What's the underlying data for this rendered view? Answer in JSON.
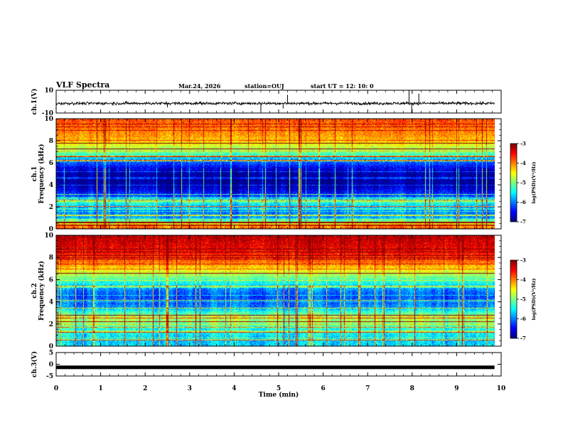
{
  "header": {
    "title": "VLF Spectra",
    "date": "Mar.24, 2026",
    "station": "station=OUJ",
    "start": "start  UT =   12: 10: 0"
  },
  "chart_data": [
    {
      "type": "line",
      "name": "ch1-waveform",
      "ylabel": "ch.1(V)",
      "ylim": [
        -10,
        10
      ],
      "yticks": [
        "10",
        "-10"
      ],
      "xlim": [
        0,
        10
      ],
      "baseline": -1.5,
      "spikes": [
        {
          "x": 4.6,
          "y": -9
        },
        {
          "x": 5.1,
          "y": -6
        },
        {
          "x": 5.2,
          "y": 6
        },
        {
          "x": 7.93,
          "y": 10
        },
        {
          "x": 7.99,
          "y": -10
        },
        {
          "x": 8.15,
          "y": 7
        },
        {
          "x": 2.5,
          "y": -5
        }
      ]
    },
    {
      "type": "heatmap",
      "name": "ch1-spectrogram",
      "ylabel": "Frequency (kHz)",
      "channel_label": "ch.1",
      "ylim": [
        0,
        10
      ],
      "yticks": [
        "0",
        "2",
        "4",
        "6",
        "8",
        "10"
      ],
      "xlim": [
        0,
        9.85
      ],
      "colorbar": {
        "label": "log(PSD)(V²/Hz)",
        "range": [
          -7,
          -3
        ],
        "ticks": [
          "-3",
          "-4",
          "-5",
          "-6",
          "-7"
        ]
      },
      "profile_freq_khz": [
        0,
        0.5,
        1,
        1.5,
        2,
        2.5,
        3,
        3.5,
        4,
        4.5,
        5,
        5.5,
        6,
        6.5,
        7,
        7.5,
        8,
        8.5,
        9,
        9.5,
        10
      ],
      "profile_logpsd": [
        -3.8,
        -4.6,
        -5.9,
        -6.0,
        -5.8,
        -5.2,
        -6.3,
        -6.6,
        -6.9,
        -7.0,
        -6.9,
        -6.6,
        -6.2,
        -5.6,
        -5.0,
        -4.7,
        -4.3,
        -4.1,
        -4.0,
        -3.9,
        -3.8
      ],
      "lines_khz": [
        0.3,
        0.55,
        1.2,
        2.0,
        2.6,
        3.1,
        6.2,
        6.6,
        7.3,
        7.8
      ],
      "bright_lines_khz": [
        0.3,
        0.6,
        6.25,
        6.55
      ]
    },
    {
      "type": "heatmap",
      "name": "ch2-spectrogram",
      "ylabel": "Frequency (kHz)",
      "channel_label": "ch.2",
      "ylim": [
        0,
        10
      ],
      "yticks": [
        "0",
        "2",
        "4",
        "6",
        "8",
        "10"
      ],
      "xlim": [
        0,
        9.85
      ],
      "colorbar": {
        "label": "log(PSD)(V²/Hz)",
        "range": [
          -7,
          -3
        ],
        "ticks": [
          "-3",
          "-4",
          "-5",
          "-6",
          "-7"
        ]
      },
      "profile_freq_khz": [
        0,
        0.5,
        1,
        1.5,
        2,
        2.5,
        3,
        3.5,
        4,
        4.5,
        5,
        5.5,
        6,
        6.5,
        7,
        7.5,
        8,
        8.5,
        9,
        9.5,
        10
      ],
      "profile_logpsd": [
        -5.6,
        -5.7,
        -5.5,
        -5.4,
        -5.0,
        -4.8,
        -5.2,
        -5.9,
        -6.1,
        -6.2,
        -6.0,
        -5.6,
        -5.2,
        -4.8,
        -4.4,
        -4.0,
        -3.7,
        -3.5,
        -3.4,
        -3.3,
        -3.2
      ],
      "lines_khz": [
        0.5,
        1.2,
        1.7,
        2.2,
        2.5,
        2.8,
        3.4,
        4.1,
        5.4,
        6.6
      ],
      "bright_lines_khz": [
        2.75,
        6.6
      ]
    },
    {
      "type": "line",
      "name": "ch3-waveform",
      "ylabel": "ch.3(V)",
      "ylim": [
        -5,
        5
      ],
      "yticks": [
        "5",
        "0",
        "-5"
      ],
      "xlim": [
        0,
        10
      ],
      "baseline": -1.3
    }
  ],
  "xaxis": {
    "label": "Time (min)",
    "ticks": [
      "0",
      "1",
      "2",
      "3",
      "4",
      "5",
      "6",
      "7",
      "8",
      "9",
      "10"
    ]
  },
  "colors": {
    "axis": "#000000",
    "background": "#ffffff"
  }
}
